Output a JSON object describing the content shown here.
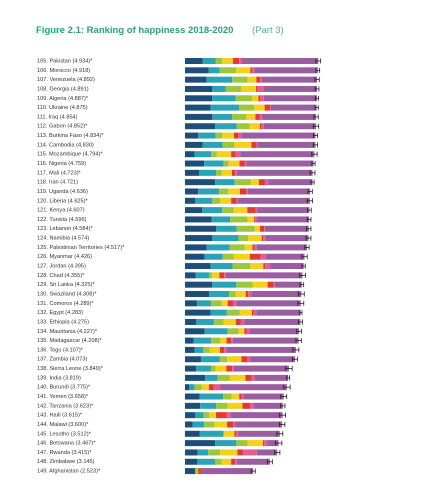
{
  "chart_data": {
    "type": "stacked-barh",
    "title": "Figure 2.1: Ranking of happiness 2018-2020",
    "subtitle": "(Part 3)",
    "xlim": [
      0,
      8
    ],
    "categories": [
      "105. Pakistan (4.934)*",
      "106. Morocco (4.918)",
      "107. Venezuela (4.892)",
      "108. Georgia (4.891)",
      "109. Algeria (4.887)*",
      "110. Ukraine (4.875)",
      "111. Iraq (4.854)",
      "112. Gabon (4.852)*",
      "113. Burkina Faso (4.834)*",
      "114. Cambodia (4.830)",
      "115. Mozambique (4.794)*",
      "116. Nigeria (4.759)",
      "117. Mali (4.723)*",
      "118. Iran (4.721)",
      "119. Uganda (4.636)",
      "120. Liberia (4.625)*",
      "121. Kenya (4.607)",
      "122. Tunisia (4.596)",
      "123. Lebanon (4.584)*",
      "124. Namibia (4.574)",
      "125. Palestinian Territories (4.517)*",
      "126. Myanmar (4.426)",
      "127. Jordan (4.395)",
      "128. Chad (4.355)*",
      "129. Sri Lanka (4.325)*",
      "130. Swaziland (4.308)*",
      "131. Comoros (4.289)*",
      "132. Egypt (4.283)",
      "133. Ethiopia (4.275)",
      "134. Mauritania (4.227)*",
      "135. Madagascar (4.208)*",
      "136. Togo (4.107)*",
      "137. Zambia (4.073)",
      "138. Sierra Leone (3.849)*",
      "139. India (3.819)",
      "140. Burundi (3.775)*",
      "141. Yemen (3.658)*",
      "142. Tanzania (3.623)*",
      "143. Haiti (3.615)*",
      "144. Malawi (3.600)*",
      "145. Lesotho (3.512)*",
      "146. Botswana (3.467)*",
      "147. Rwanda (3.415)*",
      "148. Zimbabwe (3.145)",
      "149. Afghanistan (2.523)*"
    ],
    "series": [
      {
        "color": "#1f4d7a",
        "values": [
          0.65,
          0.88,
          0.8,
          1.0,
          1.01,
          0.95,
          1.0,
          1.12,
          0.49,
          0.65,
          0.35,
          0.71,
          0.53,
          1.12,
          0.49,
          0.37,
          0.64,
          0.99,
          1.15,
          1.0,
          0.8,
          0.72,
          0.95,
          0.39,
          1.0,
          0.9,
          0.44,
          0.95,
          0.42,
          0.73,
          0.32,
          0.36,
          0.59,
          0.41,
          0.75,
          0.15,
          0.54,
          0.56,
          0.37,
          0.28,
          0.55,
          1.12,
          0.46,
          0.46,
          0.37
        ]
      },
      {
        "color": "#2aa2b8",
        "values": [
          0.48,
          0.4,
          0.95,
          0.5,
          0.87,
          1.05,
          0.75,
          0.8,
          0.65,
          0.75,
          0.62,
          0.72,
          0.62,
          0.72,
          0.77,
          0.64,
          0.74,
          0.68,
          0.76,
          0.98,
          0.85,
          0.68,
          0.82,
          0.51,
          0.9,
          0.73,
          0.52,
          0.6,
          0.65,
          0.85,
          0.65,
          0.32,
          0.69,
          0.55,
          0.46,
          0.2,
          0.87,
          0.59,
          0.32,
          0.43,
          0.88,
          0.78,
          0.4,
          0.65,
          0.0
        ]
      },
      {
        "color": "#9cc63e",
        "values": [
          0.25,
          0.62,
          0.57,
          0.59,
          0.6,
          0.56,
          0.51,
          0.47,
          0.23,
          0.43,
          0.21,
          0.18,
          0.21,
          0.6,
          0.34,
          0.3,
          0.42,
          0.65,
          0.67,
          0.36,
          0.56,
          0.4,
          0.64,
          0.11,
          0.6,
          0.25,
          0.4,
          0.48,
          0.36,
          0.4,
          0.34,
          0.24,
          0.28,
          0.17,
          0.44,
          0.26,
          0.32,
          0.43,
          0.21,
          0.38,
          0.0,
          0.42,
          0.44,
          0.24,
          0.13
        ]
      },
      {
        "color": "#f3d21c",
        "values": [
          0.4,
          0.52,
          0.32,
          0.54,
          0.24,
          0.39,
          0.35,
          0.38,
          0.44,
          0.63,
          0.53,
          0.41,
          0.38,
          0.3,
          0.43,
          0.4,
          0.51,
          0.24,
          0.2,
          0.5,
          0.29,
          0.6,
          0.49,
          0.26,
          0.56,
          0.37,
          0.22,
          0.45,
          0.45,
          0.22,
          0.23,
          0.37,
          0.53,
          0.4,
          0.59,
          0.28,
          0.28,
          0.55,
          0.25,
          0.47,
          0.4,
          0.57,
          0.64,
          0.36,
          0.0
        ]
      },
      {
        "color": "#e23a33",
        "values": [
          0.23,
          0.07,
          0.15,
          0.05,
          0.07,
          0.2,
          0.15,
          0.06,
          0.18,
          0.19,
          0.17,
          0.2,
          0.11,
          0.22,
          0.23,
          0.2,
          0.31,
          0.04,
          0.15,
          0.06,
          0.07,
          0.4,
          0.07,
          0.18,
          0.22,
          0.09,
          0.2,
          0.06,
          0.19,
          0.08,
          0.17,
          0.16,
          0.23,
          0.22,
          0.23,
          0.18,
          0.09,
          0.28,
          0.4,
          0.22,
          0.07,
          0.04,
          0.22,
          0.15,
          0.12
        ]
      },
      {
        "color": "#e65a95",
        "values": [
          0.1,
          0.08,
          0.05,
          0.22,
          0.13,
          0.02,
          0.08,
          0.09,
          0.12,
          0.05,
          0.17,
          0.06,
          0.07,
          0.13,
          0.07,
          0.04,
          0.06,
          0.05,
          0.03,
          0.09,
          0.09,
          0.19,
          0.18,
          0.07,
          0.05,
          0.14,
          0.13,
          0.1,
          0.13,
          0.1,
          0.06,
          0.09,
          0.08,
          0.04,
          0.12,
          0.23,
          0.07,
          0.15,
          0.14,
          0.09,
          0.07,
          0.11,
          0.5,
          0.07,
          0.01
        ]
      },
      {
        "color": "#9a5d9f",
        "values": [
          2.824,
          2.348,
          2.052,
          1.991,
          1.967,
          1.705,
          2.014,
          1.932,
          2.724,
          2.13,
          2.744,
          2.479,
          2.803,
          1.631,
          2.306,
          2.675,
          1.927,
          1.946,
          1.624,
          1.584,
          1.857,
          1.436,
          1.245,
          2.835,
          0.995,
          1.828,
          2.379,
          1.643,
          2.075,
          1.847,
          2.438,
          2.567,
          1.673,
          2.059,
          1.229,
          2.475,
          1.488,
          1.063,
          1.925,
          1.73,
          1.542,
          0.427,
          0.755,
          1.215,
          1.893
        ]
      }
    ],
    "ci": [
      0.09,
      0.07,
      0.08,
      0.07,
      0.06,
      0.06,
      0.08,
      0.1,
      0.08,
      0.08,
      0.1,
      0.06,
      0.09,
      0.06,
      0.08,
      0.1,
      0.07,
      0.07,
      0.08,
      0.09,
      0.08,
      0.1,
      0.06,
      0.11,
      0.07,
      0.11,
      0.11,
      0.05,
      0.08,
      0.09,
      0.1,
      0.11,
      0.1,
      0.12,
      0.05,
      0.12,
      0.11,
      0.08,
      0.11,
      0.1,
      0.11,
      0.12,
      0.1,
      0.09,
      0.08
    ]
  }
}
